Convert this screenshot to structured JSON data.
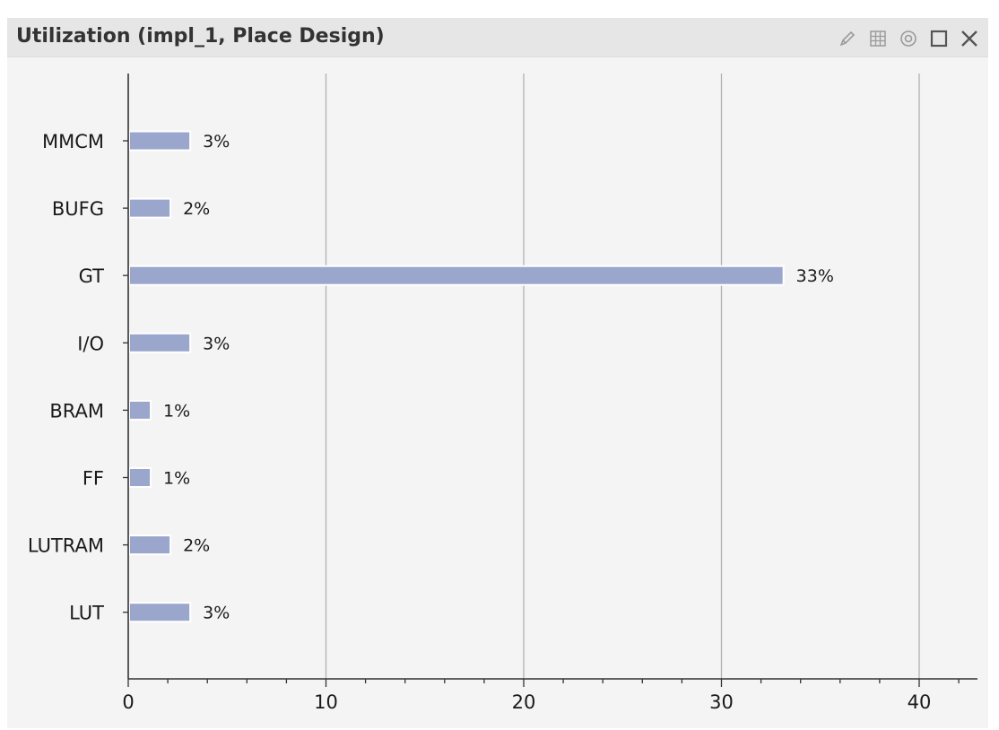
{
  "window": {
    "title": "Utilization (impl_1, Place Design)",
    "icons": [
      "pencil-icon",
      "grid-icon",
      "settings-circle-icon",
      "maximize-icon",
      "close-icon"
    ]
  },
  "chart_data": {
    "type": "bar",
    "orientation": "horizontal",
    "categories": [
      "MMCM",
      "BUFG",
      "GT",
      "I/O",
      "BRAM",
      "FF",
      "LUTRAM",
      "LUT"
    ],
    "values": [
      3,
      2,
      33,
      3,
      1,
      1,
      2,
      3
    ],
    "value_labels": [
      "3%",
      "2%",
      "33%",
      "3%",
      "1%",
      "1%",
      "2%",
      "3%"
    ],
    "x_ticks": [
      0,
      10,
      20,
      30,
      40
    ],
    "xlim": [
      0,
      43
    ],
    "grid": "vertical",
    "colors": {
      "bar": "#9aa6cc",
      "grid": "#b0b0b0",
      "axis": "#333333"
    }
  }
}
